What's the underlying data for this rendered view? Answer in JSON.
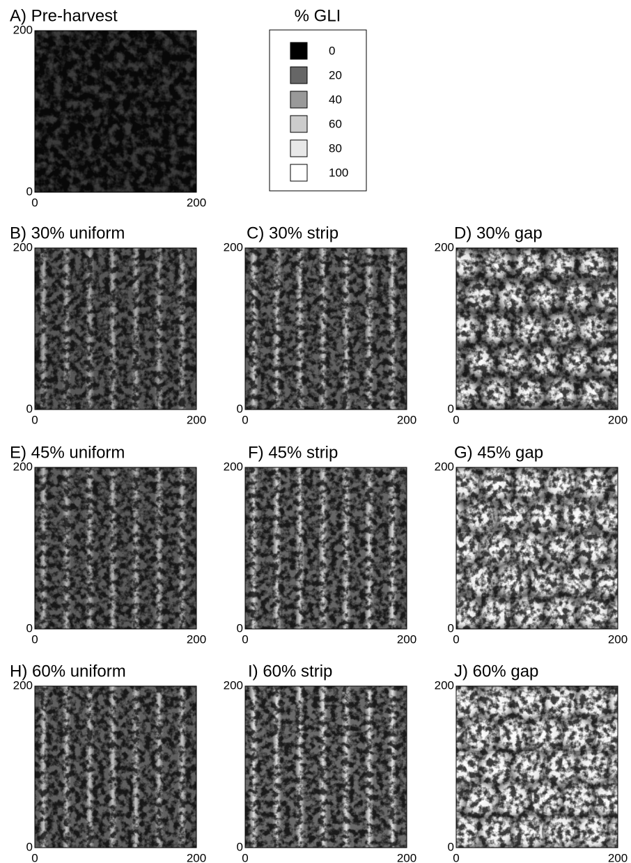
{
  "chart_data": [
    {
      "type": "heatmap",
      "title": "A) Pre-harvest",
      "xlim": [
        0,
        200
      ],
      "ylim": [
        0,
        200
      ],
      "xticks": [
        0,
        200
      ],
      "yticks": [
        0,
        200
      ]
    },
    {
      "type": "heatmap",
      "title": "B) 30% uniform",
      "xlim": [
        0,
        200
      ],
      "ylim": [
        0,
        200
      ],
      "xticks": [
        0,
        200
      ],
      "yticks": [
        0,
        200
      ]
    },
    {
      "type": "heatmap",
      "title": "C) 30% strip",
      "xlim": [
        0,
        200
      ],
      "ylim": [
        0,
        200
      ],
      "xticks": [
        0,
        200
      ],
      "yticks": [
        0,
        200
      ]
    },
    {
      "type": "heatmap",
      "title": "D) 30% gap",
      "xlim": [
        0,
        200
      ],
      "ylim": [
        0,
        200
      ],
      "xticks": [
        0,
        200
      ],
      "yticks": [
        0,
        200
      ]
    },
    {
      "type": "heatmap",
      "title": "E) 45% uniform",
      "xlim": [
        0,
        200
      ],
      "ylim": [
        0,
        200
      ],
      "xticks": [
        0,
        200
      ],
      "yticks": [
        0,
        200
      ]
    },
    {
      "type": "heatmap",
      "title": "F) 45% strip",
      "xlim": [
        0,
        200
      ],
      "ylim": [
        0,
        200
      ],
      "xticks": [
        0,
        200
      ],
      "yticks": [
        0,
        200
      ]
    },
    {
      "type": "heatmap",
      "title": "G) 45% gap",
      "xlim": [
        0,
        200
      ],
      "ylim": [
        0,
        200
      ],
      "xticks": [
        0,
        200
      ],
      "yticks": [
        0,
        200
      ]
    },
    {
      "type": "heatmap",
      "title": "H) 60% uniform",
      "xlim": [
        0,
        200
      ],
      "ylim": [
        0,
        200
      ],
      "xticks": [
        0,
        200
      ],
      "yticks": [
        0,
        200
      ]
    },
    {
      "type": "heatmap",
      "title": "I) 60% strip",
      "xlim": [
        0,
        200
      ],
      "ylim": [
        0,
        200
      ],
      "xticks": [
        0,
        200
      ],
      "yticks": [
        0,
        200
      ]
    },
    {
      "type": "heatmap",
      "title": "J) 60% gap",
      "xlim": [
        0,
        200
      ],
      "ylim": [
        0,
        200
      ],
      "xticks": [
        0,
        200
      ],
      "yticks": [
        0,
        200
      ]
    }
  ],
  "legend": {
    "title": "% GLI",
    "levels": [
      0,
      20,
      40,
      60,
      80,
      100
    ],
    "colors": [
      "#000000",
      "#666666",
      "#999999",
      "#cccccc",
      "#e8e8e8",
      "#ffffff"
    ]
  }
}
